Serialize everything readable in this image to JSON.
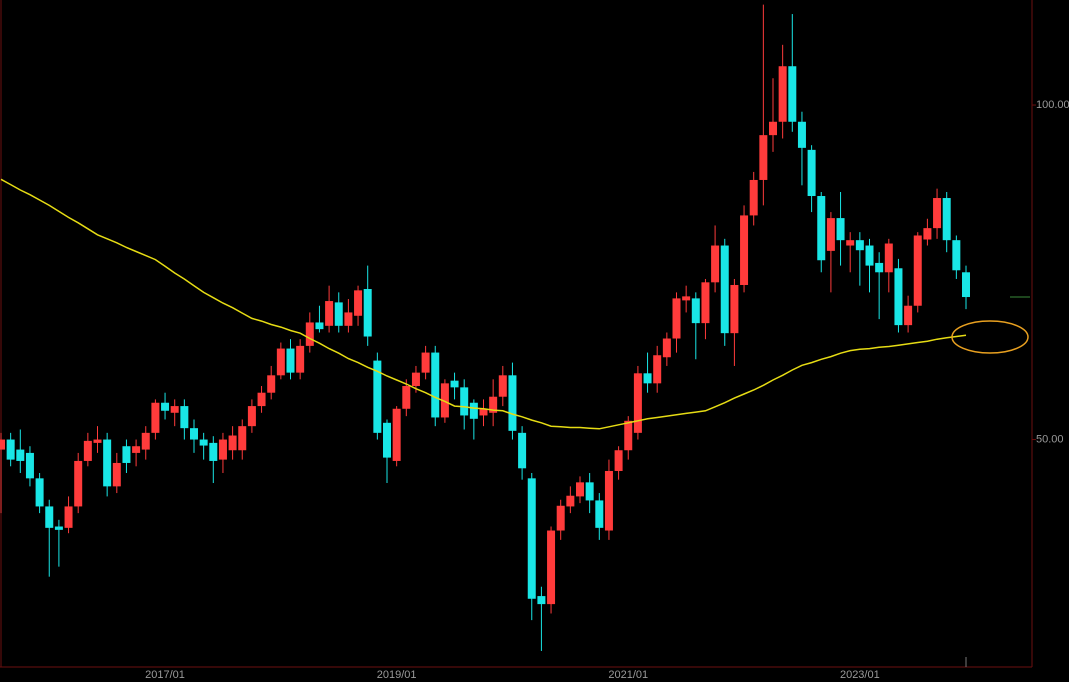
{
  "chart_data": {
    "type": "candlestick",
    "categories": [
      null,
      null,
      null,
      null,
      null,
      null,
      null,
      null,
      null,
      null,
      null,
      null,
      null,
      null,
      null,
      null,
      null,
      "2017/01",
      null,
      null,
      null,
      null,
      null,
      null,
      null,
      null,
      null,
      null,
      null,
      null,
      null,
      null,
      null,
      null,
      null,
      null,
      null,
      null,
      null,
      null,
      null,
      "2019/01",
      null,
      null,
      null,
      null,
      null,
      null,
      null,
      null,
      null,
      null,
      null,
      null,
      null,
      null,
      null,
      null,
      null,
      null,
      null,
      null,
      null,
      null,
      null,
      "2021/01",
      null,
      null,
      null,
      null,
      null,
      null,
      null,
      null,
      null,
      null,
      null,
      null,
      null,
      null,
      null,
      null,
      null,
      null,
      null,
      null,
      null,
      null,
      null,
      "2023/01",
      null,
      null,
      null,
      null,
      null,
      null,
      null,
      null,
      null,
      null,
      null
    ],
    "open": [
      48.5,
      50,
      48.5,
      48,
      44.2,
      40,
      37,
      36.8,
      40,
      46.8,
      49.5,
      50,
      43,
      49,
      48,
      48.5,
      51,
      55.5,
      54,
      55,
      51.7,
      50,
      49.5,
      47,
      48.4,
      48.4,
      52,
      55,
      57,
      59.6,
      63.6,
      60,
      64,
      67.5,
      67,
      70.5,
      67,
      68.5,
      72.5,
      61.8,
      52.5,
      46.8,
      54.6,
      58,
      60,
      63,
      53.3,
      58.8,
      57.8,
      55.5,
      53.6,
      54,
      56.4,
      59.6,
      51,
      44.2,
      26.6,
      25.4,
      36.4,
      40,
      41.5,
      43.6,
      40.9,
      36.4,
      45.3,
      48.4,
      51,
      59.9,
      58.4,
      62.3,
      65.1,
      70.8,
      71.1,
      67.4,
      73.5,
      79,
      65.9,
      73.1,
      83.5,
      88.8,
      95.5,
      97.5,
      105.8,
      97.5,
      93.3,
      86.4,
      78.2,
      83.1,
      79,
      79.8,
      79,
      76.4,
      75,
      75.6,
      67.1,
      70,
      79.9,
      81.6,
      86.1,
      79.8,
      75
    ],
    "high": [
      51,
      51,
      51.5,
      49,
      45,
      41,
      38,
      41.5,
      48,
      51,
      52,
      51,
      48,
      50,
      50,
      52,
      56,
      57,
      56,
      56,
      53,
      51,
      50.5,
      51,
      52,
      53,
      56,
      58,
      61,
      64.5,
      65,
      65,
      69,
      70,
      73,
      72,
      71,
      73,
      76,
      63,
      53,
      55,
      59,
      61,
      64,
      64,
      59,
      60,
      59,
      56,
      56,
      59,
      61,
      61.5,
      52,
      45,
      28,
      37,
      41,
      43,
      44.5,
      45,
      42,
      47,
      49,
      53.5,
      61,
      63,
      64,
      66,
      72,
      73,
      72,
      74,
      82,
      80,
      74,
      85,
      90,
      115,
      104,
      109,
      113.6,
      99,
      94,
      87,
      84,
      87,
      81,
      81,
      80,
      78,
      80,
      77,
      71.5,
      81,
      83,
      87.5,
      87,
      80.5,
      76
    ],
    "low": [
      39,
      46,
      45,
      43,
      39,
      29.5,
      31,
      36,
      39,
      46,
      48,
      41.5,
      42,
      45,
      46,
      47,
      50,
      53,
      52,
      50,
      48,
      47,
      43.5,
      45,
      47,
      47,
      51,
      54,
      56,
      59,
      59,
      59,
      63,
      66,
      66,
      66,
      66,
      67,
      64,
      50,
      43.5,
      46,
      53.5,
      57,
      59,
      52,
      52.5,
      56,
      51.5,
      50,
      52,
      52,
      55,
      50,
      44,
      23,
      18.4,
      24,
      35,
      39,
      40.5,
      39,
      35,
      35,
      44,
      47,
      50,
      57,
      57,
      61,
      63,
      69,
      62,
      65,
      72,
      64,
      61,
      72,
      82,
      85,
      93,
      95,
      96,
      88,
      84,
      75,
      72,
      76,
      75,
      73,
      72,
      68,
      72,
      66,
      66,
      69,
      79,
      80,
      78,
      74,
      69.5
    ],
    "close": [
      50,
      47,
      46.8,
      44.2,
      40,
      36.8,
      36.5,
      40,
      46.8,
      49.8,
      50,
      43,
      46.5,
      46.5,
      49,
      51,
      55.5,
      54.3,
      55,
      51.7,
      50,
      49.1,
      46.8,
      50,
      50.6,
      52,
      55,
      57,
      59.6,
      63.6,
      60,
      64,
      67.5,
      66.5,
      70.7,
      67,
      69,
      72.3,
      65.4,
      51,
      47.3,
      54.6,
      58,
      60,
      63,
      53.3,
      58.4,
      57.8,
      53.6,
      53.1,
      54.6,
      56.4,
      59.6,
      51.3,
      45.7,
      26.2,
      25.4,
      36.4,
      40.1,
      41.6,
      43.6,
      40.9,
      36.8,
      45.3,
      48.4,
      52.8,
      59.9,
      58.4,
      62.6,
      65.1,
      71.1,
      71.4,
      67.4,
      73.5,
      79,
      65.9,
      73.1,
      83.5,
      88.8,
      95.5,
      97.5,
      105.8,
      97.5,
      93.6,
      86.4,
      76.8,
      83.1,
      79.8,
      79.8,
      78.3,
      76,
      75,
      79.3,
      67.1,
      70,
      80.5,
      81.6,
      86.1,
      79.8,
      75.3,
      71.3
    ],
    "up_color": "#ff3b3b",
    "down_color": "#19e6e6",
    "moving_average": {
      "color": "#e6dc14",
      "values": [
        88.9,
        88.1,
        87.3,
        86.6,
        85.8,
        85.0,
        84.1,
        83.2,
        82.4,
        81.5,
        80.6,
        80.0,
        79.4,
        78.7,
        78.1,
        77.5,
        76.9,
        75.9,
        74.9,
        74.0,
        73.0,
        72.0,
        71.2,
        70.4,
        69.7,
        68.9,
        68.1,
        67.7,
        67.2,
        66.8,
        66.3,
        65.9,
        65.1,
        64.4,
        63.6,
        62.9,
        62.1,
        61.5,
        60.8,
        60.2,
        59.5,
        58.9,
        58.3,
        57.6,
        57.0,
        56.3,
        55.7,
        55.0,
        54.9,
        54.7,
        54.6,
        54.4,
        54.3,
        53.8,
        53.4,
        52.9,
        52.5,
        52.0,
        51.9,
        51.8,
        51.8,
        51.7,
        51.6,
        51.9,
        52.2,
        52.5,
        52.8,
        53.1,
        53.3,
        53.5,
        53.7,
        53.9,
        54.1,
        54.3,
        54.9,
        55.5,
        56.2,
        56.8,
        57.4,
        58.1,
        58.9,
        59.6,
        60.4,
        61.1,
        61.5,
        62.0,
        62.4,
        62.9,
        63.3,
        63.5,
        63.6,
        63.8,
        63.9,
        64.1,
        64.3,
        64.5,
        64.7,
        65.0,
        65.2,
        65.4,
        65.6
      ]
    },
    "ylim": [
      16,
      115.7
    ],
    "yticks": [
      {
        "value": 100,
        "label": "100.00"
      },
      {
        "value": 50,
        "label": "50.00"
      }
    ]
  }
}
